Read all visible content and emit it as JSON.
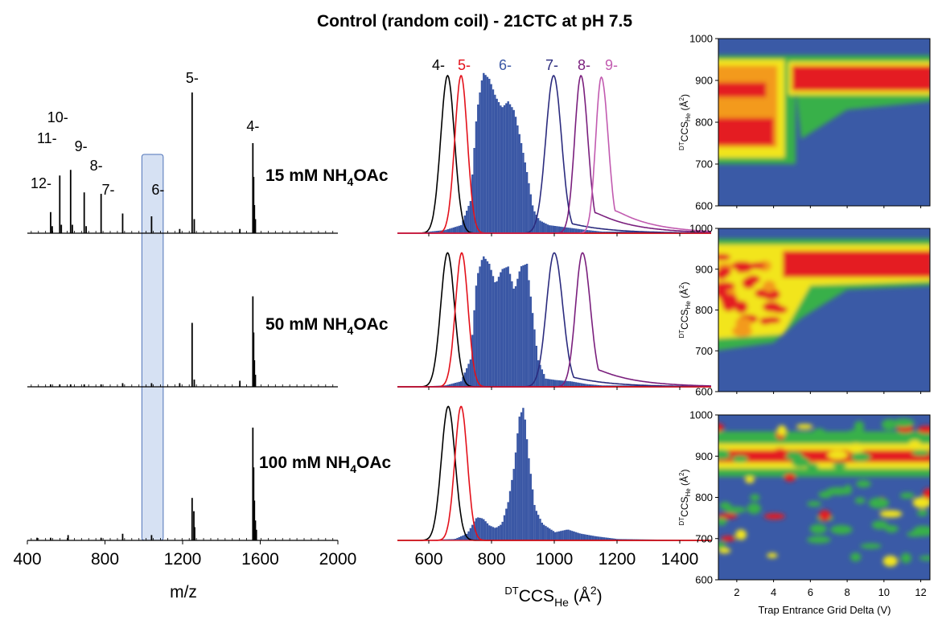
{
  "title": "Control (random coil) - 21CTC at pH 7.5",
  "colors": {
    "ms_trace": "#000000",
    "highlight_fill": "#c8d7ef",
    "highlight_stroke": "#4e72b8",
    "z4": "#000000",
    "z5": "#e3111b",
    "z6": "#3a57a5",
    "z7": "#2b2b7e",
    "z8": "#7a1f7d",
    "z9": "#c25bb0",
    "heat_low": "#3a5aa6",
    "heat_mid": "#38b04a",
    "heat_high": "#e41e20"
  },
  "chart_data": [
    {
      "type": "line",
      "name": "mass spectra",
      "xlabel": "m/z",
      "xlim": [
        400,
        2000
      ],
      "xticks": [
        "400",
        "800",
        "1200",
        "1600",
        "2000"
      ],
      "highlight_mz": [
        990,
        1100
      ],
      "conditions": [
        {
          "label": "15 mM NH",
          "sub": "4",
          "suffix": "OAc"
        },
        {
          "label": "50 mM NH",
          "sub": "4",
          "suffix": "OAc"
        },
        {
          "label": "100 mM NH",
          "sub": "4",
          "suffix": "OAc"
        }
      ],
      "peak_labels": [
        {
          "text": "12-",
          "mz": 520
        },
        {
          "text": "11-",
          "mz": 567
        },
        {
          "text": "10-",
          "mz": 623
        },
        {
          "text": "9-",
          "mz": 693
        },
        {
          "text": "8-",
          "mz": 780
        },
        {
          "text": "7-",
          "mz": 891
        },
        {
          "text": "6-",
          "mz": 1040
        },
        {
          "text": "5-",
          "mz": 1249
        },
        {
          "text": "4-",
          "mz": 1562
        }
      ],
      "series": [
        {
          "name": "15 mM",
          "peaks": [
            [
              520,
              0.15
            ],
            [
              528,
              0.05
            ],
            [
              567,
              0.41
            ],
            [
              575,
              0.06
            ],
            [
              623,
              0.45
            ],
            [
              632,
              0.06
            ],
            [
              693,
              0.29
            ],
            [
              703,
              0.05
            ],
            [
              780,
              0.28
            ],
            [
              891,
              0.14
            ],
            [
              1040,
              0.12
            ],
            [
              1185,
              0.03
            ],
            [
              1249,
              1.0
            ],
            [
              1260,
              0.1
            ],
            [
              1495,
              0.03
            ],
            [
              1562,
              0.64
            ],
            [
              1566,
              0.4
            ],
            [
              1570,
              0.2
            ],
            [
              1575,
              0.1
            ]
          ]
        },
        {
          "name": "50 mM",
          "peaks": [
            [
              520,
              0.02
            ],
            [
              567,
              0.02
            ],
            [
              623,
              0.02
            ],
            [
              693,
              0.02
            ],
            [
              780,
              0.02
            ],
            [
              891,
              0.03
            ],
            [
              1040,
              0.03
            ],
            [
              1185,
              0.03
            ],
            [
              1249,
              0.53
            ],
            [
              1260,
              0.06
            ],
            [
              1495,
              0.05
            ],
            [
              1562,
              0.75
            ],
            [
              1566,
              0.45
            ],
            [
              1570,
              0.22
            ],
            [
              1575,
              0.1
            ]
          ]
        },
        {
          "name": "100 mM",
          "peaks": [
            [
              450,
              0.02
            ],
            [
              520,
              0.02
            ],
            [
              610,
              0.04
            ],
            [
              780,
              0.02
            ],
            [
              891,
              0.05
            ],
            [
              1040,
              0.04
            ],
            [
              1249,
              0.32
            ],
            [
              1258,
              0.22
            ],
            [
              1262,
              0.1
            ],
            [
              1562,
              0.85
            ],
            [
              1566,
              0.55
            ],
            [
              1570,
              0.3
            ],
            [
              1575,
              0.15
            ],
            [
              1580,
              0.08
            ]
          ]
        }
      ]
    },
    {
      "type": "line",
      "name": "CCS distributions",
      "xlabel_pre": "DT",
      "xlabel_main": "CCS",
      "xlabel_sub": "He",
      "xlabel_unit": " (Å",
      "xlabel_sup": "2",
      "xlabel_end": ")",
      "xlim": [
        500,
        1500
      ],
      "xticks": [
        "600",
        "800",
        "1000",
        "1200",
        "1400"
      ],
      "charge_labels": [
        {
          "text": "4-",
          "ccs": 660,
          "color": "#000000"
        },
        {
          "text": "5-",
          "ccs": 705,
          "color": "#e3111b"
        },
        {
          "text": "6-",
          "ccs": 830,
          "color": "#3a57a5"
        },
        {
          "text": "7-",
          "ccs": 995,
          "color": "#2b2b7e"
        },
        {
          "text": "8-",
          "ccs": 1080,
          "color": "#7a1f7d"
        },
        {
          "text": "9-",
          "ccs": 1160,
          "color": "#c25bb0"
        }
      ],
      "panels": [
        {
          "hist_6": [
            [
              550,
              0
            ],
            [
              600,
              0.01
            ],
            [
              650,
              0.02
            ],
            [
              700,
              0.05
            ],
            [
              730,
              0.2
            ],
            [
              750,
              0.75
            ],
            [
              770,
              1.0
            ],
            [
              790,
              0.96
            ],
            [
              810,
              0.85
            ],
            [
              830,
              0.78
            ],
            [
              850,
              0.82
            ],
            [
              870,
              0.76
            ],
            [
              890,
              0.58
            ],
            [
              910,
              0.38
            ],
            [
              930,
              0.15
            ],
            [
              950,
              0.08
            ],
            [
              980,
              0.05
            ],
            [
              1020,
              0.04
            ],
            [
              1060,
              0.03
            ],
            [
              1100,
              0.02
            ],
            [
              1150,
              0.01
            ],
            [
              1250,
              0.01
            ],
            [
              1500,
              0
            ]
          ],
          "curves": [
            {
              "charge": "4-",
              "peak": 660,
              "w_left": 22,
              "w_right": 22,
              "tail": 0,
              "height": 0.98
            },
            {
              "charge": "5-",
              "peak": 703,
              "w_left": 20,
              "w_right": 20,
              "tail": 0,
              "height": 0.98
            },
            {
              "charge": "7-",
              "peak": 998,
              "w_left": 25,
              "w_right": 25,
              "tail": 0.1,
              "height": 0.98
            },
            {
              "charge": "8-",
              "peak": 1085,
              "w_left": 20,
              "w_right": 22,
              "tail": 0.2,
              "height": 0.98
            },
            {
              "charge": "9-",
              "peak": 1150,
              "w_left": 18,
              "w_right": 22,
              "tail": 0.22,
              "height": 0.97
            }
          ]
        },
        {
          "hist_6": [
            [
              550,
              0
            ],
            [
              650,
              0.01
            ],
            [
              700,
              0.04
            ],
            [
              730,
              0.2
            ],
            [
              750,
              0.8
            ],
            [
              770,
              0.96
            ],
            [
              790,
              0.9
            ],
            [
              810,
              0.75
            ],
            [
              830,
              0.86
            ],
            [
              850,
              0.88
            ],
            [
              870,
              0.7
            ],
            [
              890,
              0.88
            ],
            [
              910,
              0.9
            ],
            [
              925,
              0.6
            ],
            [
              945,
              0.2
            ],
            [
              970,
              0.06
            ],
            [
              1000,
              0.05
            ],
            [
              1050,
              0.04
            ],
            [
              1100,
              0.02
            ],
            [
              1150,
              0.01
            ],
            [
              1300,
              0.01
            ],
            [
              1500,
              0
            ]
          ],
          "curves": [
            {
              "charge": "4-",
              "peak": 660,
              "w_left": 22,
              "w_right": 22,
              "tail": 0,
              "height": 0.98
            },
            {
              "charge": "5-",
              "peak": 705,
              "w_left": 20,
              "w_right": 20,
              "tail": 0,
              "height": 0.98
            },
            {
              "charge": "7-",
              "peak": 1000,
              "w_left": 25,
              "w_right": 27,
              "tail": 0.12,
              "height": 0.98
            },
            {
              "charge": "8-",
              "peak": 1090,
              "w_left": 22,
              "w_right": 25,
              "tail": 0.2,
              "height": 0.98
            }
          ]
        },
        {
          "hist_6": [
            [
              550,
              0
            ],
            [
              680,
              0.01
            ],
            [
              720,
              0.05
            ],
            [
              750,
              0.17
            ],
            [
              770,
              0.16
            ],
            [
              790,
              0.11
            ],
            [
              810,
              0.09
            ],
            [
              830,
              0.12
            ],
            [
              850,
              0.28
            ],
            [
              870,
              0.55
            ],
            [
              885,
              0.9
            ],
            [
              900,
              0.98
            ],
            [
              915,
              0.62
            ],
            [
              935,
              0.24
            ],
            [
              960,
              0.12
            ],
            [
              1000,
              0.06
            ],
            [
              1040,
              0.08
            ],
            [
              1080,
              0.05
            ],
            [
              1130,
              0.03
            ],
            [
              1200,
              0.01
            ],
            [
              1500,
              0
            ]
          ],
          "curves": [
            {
              "charge": "4-",
              "peak": 662,
              "w_left": 22,
              "w_right": 22,
              "tail": 0,
              "height": 0.98
            },
            {
              "charge": "5-",
              "peak": 703,
              "w_left": 20,
              "w_right": 20,
              "tail": 0,
              "height": 0.98
            }
          ]
        }
      ]
    },
    {
      "type": "heatmap",
      "name": "CIU fingerprints",
      "xlabel": "Trap Entrance Grid Delta (V)",
      "ylabel_pre": "DT",
      "ylabel_main": "CCS",
      "ylabel_sub": "He",
      "ylabel_unit": " (Å",
      "ylabel_sup": "2",
      "ylabel_end": ")",
      "xlim": [
        1,
        12.5
      ],
      "ylim": [
        600,
        1000
      ],
      "xticks": [
        "2",
        "4",
        "6",
        "8",
        "10",
        "12"
      ],
      "yticks": [
        "600",
        "700",
        "800",
        "900",
        "1000"
      ],
      "panels": [
        "15 mM",
        "50 mM",
        "100 mM"
      ]
    }
  ]
}
